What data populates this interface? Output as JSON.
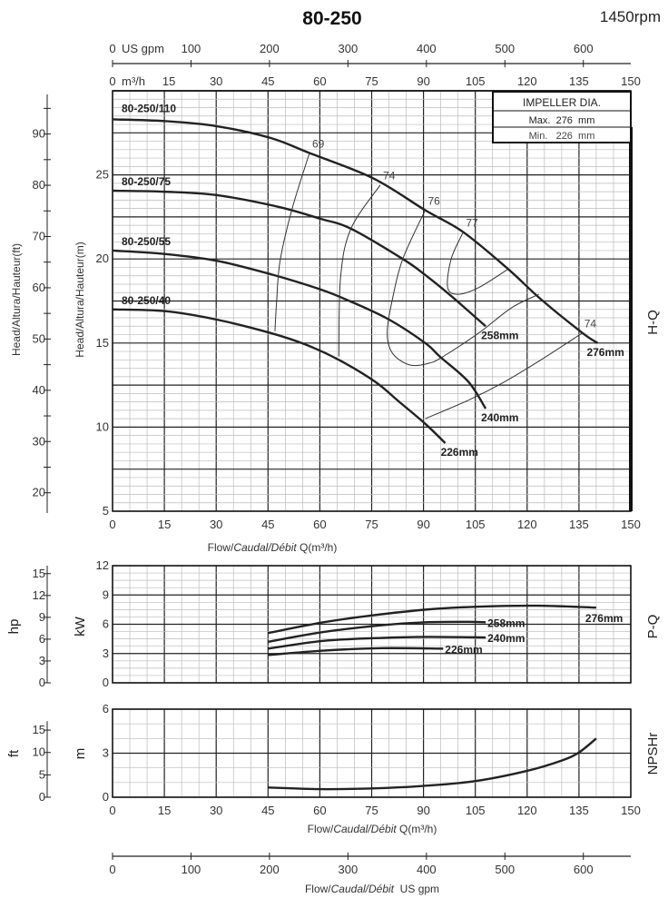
{
  "title": "80-250",
  "speed": "1450rpm",
  "impeller_box": {
    "heading": "IMPELLER DIA.",
    "max": "Max.  276  mm",
    "min": "Min.   226  mm"
  },
  "top_axes": {
    "gpm_unit": "US gpm",
    "gpm_ticks": [
      "0",
      "100",
      "200",
      "300",
      "400",
      "500",
      "600"
    ],
    "m3h_unit": "m³/h",
    "m3h_ticks": [
      "0",
      "15",
      "30",
      "45",
      "60",
      "75",
      "90",
      "105",
      "120",
      "135",
      "150"
    ]
  },
  "flow_label": {
    "a": "Flow/",
    "b": "Caudal/Débit",
    "c": " Q(m³/h)"
  },
  "flow_label_gpm": {
    "a": "Flow/",
    "b": "Caudal/Débit",
    "c": "  US gpm"
  },
  "side_labels": {
    "hq": "H-Q",
    "pq": "P-Q",
    "npsh": "NPSHr",
    "head_ft": "Head/Altura/Hauteur(ft)",
    "head_m": "Head/Altura/Hauteur(m)",
    "hp": "hp",
    "kw": "kW",
    "ft": "ft",
    "m": "m"
  },
  "chart_data": [
    {
      "type": "line",
      "name": "H-Q",
      "xlabel": "Flow/Caudal/Débit Q(m³/h)",
      "ylabel": "Head/Altura/Hauteur(m)",
      "ylabel2": "Head/Altura/Hauteur(ft)",
      "xlim": [
        0,
        150
      ],
      "ylim": [
        5,
        30
      ],
      "x_ticks": [
        0,
        15,
        30,
        45,
        60,
        75,
        90,
        105,
        120,
        135,
        150
      ],
      "y_ticks": [
        5,
        10,
        15,
        20,
        25
      ],
      "y2_ticks": [
        20,
        30,
        40,
        50,
        60,
        70,
        80,
        90
      ],
      "grid": true,
      "series": [
        {
          "name": "80-250/110",
          "end_label": "276mm",
          "points": [
            [
              0,
              28.3
            ],
            [
              15,
              28.2
            ],
            [
              30,
              27.9
            ],
            [
              45.7,
              27.2
            ],
            [
              57,
              26.3
            ],
            [
              75.4,
              24.8
            ],
            [
              90.5,
              22.9
            ],
            [
              101.5,
              21.6
            ],
            [
              114.5,
              19.4
            ],
            [
              124,
              17.6
            ],
            [
              136,
              15.6
            ],
            [
              140.4,
              15.0
            ]
          ]
        },
        {
          "name": "80-250/75",
          "end_label": "258mm",
          "points": [
            [
              0,
              24.06
            ],
            [
              15,
              24.0
            ],
            [
              30,
              23.8
            ],
            [
              48,
              23.1
            ],
            [
              60,
              22.4
            ],
            [
              69,
              21.8
            ],
            [
              84,
              20.0
            ],
            [
              90.5,
              19.05
            ],
            [
              98,
              17.8
            ],
            [
              108,
              16.0
            ]
          ]
        },
        {
          "name": "80-250/55",
          "end_label": "240mm",
          "points": [
            [
              0,
              20.5
            ],
            [
              15,
              20.3
            ],
            [
              30,
              19.9
            ],
            [
              45.7,
              19.1
            ],
            [
              60,
              18.2
            ],
            [
              68.6,
              17.5
            ],
            [
              80,
              16.4
            ],
            [
              90.5,
              15.0
            ],
            [
              94.7,
              14.2
            ],
            [
              103,
              12.7
            ],
            [
              108,
              11.1
            ]
          ]
        },
        {
          "name": "80-250/40",
          "end_label": "226mm",
          "points": [
            [
              0,
              17.0
            ],
            [
              15,
              16.9
            ],
            [
              30,
              16.4
            ],
            [
              45.7,
              15.6
            ],
            [
              56,
              14.9
            ],
            [
              65.5,
              14.0
            ],
            [
              76,
              12.7
            ],
            [
              83,
              11.5
            ],
            [
              90.5,
              10.2
            ],
            [
              96.3,
              9.05
            ]
          ]
        }
      ],
      "efficiency": [
        {
          "label": "69",
          "points": [
            [
              57,
              26.3
            ],
            [
              52,
              23.0
            ],
            [
              48.5,
              19.9
            ],
            [
              47.5,
              17.5
            ],
            [
              47,
              15.7
            ]
          ]
        },
        {
          "label": "74",
          "points": [
            [
              77.5,
              24.4
            ],
            [
              69,
              21.8
            ],
            [
              66,
              18.9
            ],
            [
              65.5,
              14.2
            ]
          ]
        },
        {
          "label": "76",
          "points": [
            [
              90.5,
              22.9
            ],
            [
              84,
              20.0
            ],
            [
              81,
              17.6
            ],
            [
              79.5,
              15.6
            ],
            [
              81,
              14.4
            ],
            [
              86,
              13.7
            ],
            [
              91.6,
              13.8
            ],
            [
              95.7,
              14.2
            ],
            [
              106,
              15.6
            ],
            [
              115.5,
              17.1
            ],
            [
              123.4,
              17.9
            ]
          ]
        },
        {
          "label": "77",
          "points": [
            [
              101.5,
              21.6
            ],
            [
              98,
              20.0
            ],
            [
              97,
              18.3
            ],
            [
              100,
              17.9
            ],
            [
              106,
              18.3
            ],
            [
              114.5,
              19.4
            ]
          ]
        },
        {
          "label": "74",
          "points": [
            [
              136,
              15.6
            ],
            [
              124,
              14.0
            ],
            [
              113.5,
              12.7
            ],
            [
              103,
              11.6
            ],
            [
              90.5,
              10.5
            ]
          ]
        }
      ]
    },
    {
      "type": "line",
      "name": "P-Q",
      "ylabel": "kW",
      "ylabel2": "hp",
      "xlim": [
        0,
        150
      ],
      "ylim": [
        0,
        12
      ],
      "y_ticks": [
        0,
        3,
        6,
        9,
        12
      ],
      "y2_ticks": [
        0,
        3,
        6,
        9,
        12,
        15
      ],
      "grid": true,
      "series": [
        {
          "end_label": "276mm",
          "points": [
            [
              45,
              5.1
            ],
            [
              61,
              6.2
            ],
            [
              75,
              6.9
            ],
            [
              90.7,
              7.5
            ],
            [
              105.5,
              7.8
            ],
            [
              123,
              7.9
            ],
            [
              140,
              7.7
            ]
          ]
        },
        {
          "end_label": "258mm",
          "points": [
            [
              45,
              4.2
            ],
            [
              61,
              5.2
            ],
            [
              78,
              5.9
            ],
            [
              90.7,
              6.2
            ],
            [
              103,
              6.25
            ],
            [
              108,
              6.2
            ]
          ]
        },
        {
          "end_label": "240mm",
          "points": [
            [
              45,
              3.5
            ],
            [
              61,
              4.3
            ],
            [
              78,
              4.6
            ],
            [
              90.7,
              4.7
            ],
            [
              108,
              4.65
            ]
          ]
        },
        {
          "end_label": "226mm",
          "points": [
            [
              45,
              2.85
            ],
            [
              61,
              3.3
            ],
            [
              78,
              3.55
            ],
            [
              95.7,
              3.5
            ]
          ]
        }
      ]
    },
    {
      "type": "line",
      "name": "NPSHr",
      "xlabel": "Flow/Caudal/Débit Q(m³/h)",
      "ylabel": "m",
      "ylabel2": "ft",
      "xlim": [
        0,
        150
      ],
      "ylim": [
        0,
        6
      ],
      "x_ticks": [
        0,
        15,
        30,
        45,
        60,
        75,
        90,
        105,
        120,
        135,
        150
      ],
      "y_ticks": [
        0,
        3,
        6
      ],
      "y2_ticks": [
        0,
        5,
        10,
        15
      ],
      "grid": true,
      "series": [
        {
          "points": [
            [
              45,
              0.66
            ],
            [
              60,
              0.55
            ],
            [
              75,
              0.6
            ],
            [
              90,
              0.77
            ],
            [
              105,
              1.1
            ],
            [
              120,
              1.8
            ],
            [
              130,
              2.5
            ],
            [
              135,
              3.05
            ],
            [
              140,
              4.0
            ]
          ]
        }
      ],
      "x2_label": "Flow/Caudal/Débit US gpm",
      "x2_ticks": [
        0,
        100,
        200,
        300,
        400,
        500,
        600
      ]
    }
  ]
}
